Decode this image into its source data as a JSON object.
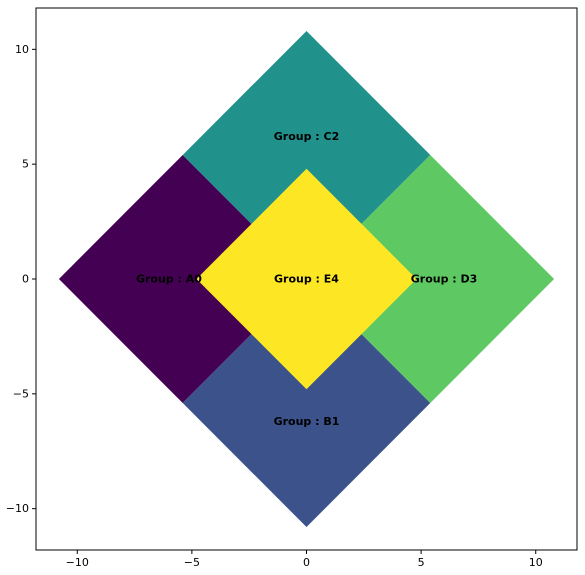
{
  "chart_data": {
    "type": "area",
    "title": "",
    "xlabel": "",
    "ylabel": "",
    "xlim": [
      -11.8,
      11.8
    ],
    "ylim": [
      -11.8,
      11.8
    ],
    "grid": false,
    "xticks": [
      -10,
      -5,
      0,
      5,
      10
    ],
    "yticks": [
      -10,
      -5,
      0,
      5,
      10
    ],
    "xtick_labels": [
      "−10",
      "−5",
      "0",
      "5",
      "10"
    ],
    "ytick_labels": [
      "−10",
      "−5",
      "0",
      "5",
      "10"
    ],
    "groups": [
      {
        "label": "Group : A0",
        "color": "#440154",
        "polygon": [
          [
            -10.8,
            0.0
          ],
          [
            -5.4,
            5.4
          ],
          [
            0.0,
            0.0
          ],
          [
            -5.4,
            -5.4
          ]
        ],
        "label_at": [
          -6.0,
          0.0
        ]
      },
      {
        "label": "Group : B1",
        "color": "#3b528b",
        "polygon": [
          [
            0.0,
            -10.8
          ],
          [
            5.4,
            -5.4
          ],
          [
            0.0,
            0.0
          ],
          [
            -5.4,
            -5.4
          ]
        ],
        "label_at": [
          0.0,
          -6.2
        ]
      },
      {
        "label": "Group : C2",
        "color": "#21918c",
        "polygon": [
          [
            0.0,
            10.8
          ],
          [
            5.4,
            5.4
          ],
          [
            0.0,
            0.0
          ],
          [
            -5.4,
            5.4
          ]
        ],
        "label_at": [
          0.0,
          6.2
        ]
      },
      {
        "label": "Group : D3",
        "color": "#5ec962",
        "polygon": [
          [
            10.8,
            0.0
          ],
          [
            5.4,
            5.4
          ],
          [
            0.0,
            0.0
          ],
          [
            5.4,
            -5.4
          ]
        ],
        "label_at": [
          6.0,
          0.0
        ]
      },
      {
        "label": "Group : E4",
        "color": "#fde725",
        "polygon": [
          [
            0.0,
            4.8
          ],
          [
            4.8,
            0.0
          ],
          [
            0.0,
            -4.8
          ],
          [
            -4.8,
            0.0
          ]
        ],
        "label_at": [
          0.0,
          0.0
        ]
      }
    ]
  }
}
